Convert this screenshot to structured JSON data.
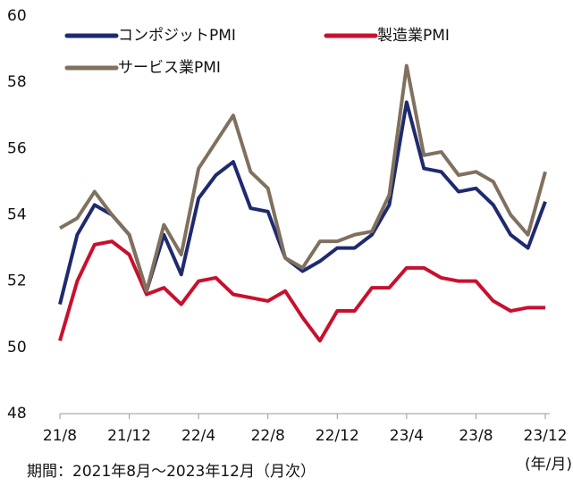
{
  "chart_data": {
    "type": "line",
    "categories": [
      "21/8",
      null,
      null,
      null,
      "21/12",
      null,
      null,
      null,
      "22/4",
      null,
      null,
      null,
      "22/8",
      null,
      null,
      null,
      "22/12",
      null,
      null,
      null,
      "23/4",
      null,
      null,
      null,
      "23/8",
      null,
      null,
      null,
      "23/12"
    ],
    "series": [
      {
        "name": "コンポジットPMI",
        "color": "#1f2a6e",
        "values": [
          51.3,
          53.4,
          54.3,
          54.0,
          53.4,
          51.7,
          53.4,
          52.2,
          54.5,
          55.2,
          55.6,
          54.2,
          54.1,
          52.7,
          52.3,
          52.6,
          53.0,
          53.0,
          53.4,
          54.3,
          57.4,
          55.4,
          55.3,
          54.7,
          54.8,
          54.3,
          53.4,
          53.0,
          54.4
        ]
      },
      {
        "name": "製造業PMI",
        "color": "#c8102e",
        "values": [
          50.2,
          52.0,
          53.1,
          53.2,
          52.8,
          51.6,
          51.8,
          51.3,
          52.0,
          52.1,
          51.6,
          51.5,
          51.4,
          51.7,
          50.9,
          50.2,
          51.1,
          51.1,
          51.8,
          51.8,
          52.4,
          52.4,
          52.1,
          52.0,
          52.0,
          51.4,
          51.1,
          51.2,
          51.2
        ]
      },
      {
        "name": "サービス業PMI",
        "color": "#80705e",
        "values": [
          53.6,
          53.9,
          54.7,
          54.0,
          53.4,
          51.7,
          53.7,
          52.8,
          55.4,
          56.2,
          57.0,
          55.3,
          54.8,
          52.7,
          52.4,
          53.2,
          53.2,
          53.4,
          53.5,
          54.6,
          58.5,
          55.8,
          55.9,
          55.2,
          55.3,
          55.0,
          54.0,
          53.4,
          55.3
        ]
      }
    ],
    "ylim": [
      48,
      60
    ],
    "yticks": [
      48,
      50,
      52,
      54,
      56,
      58,
      60
    ],
    "grid": false,
    "x_unit_label": "(年/月)",
    "note": "期間：2021年8月～2023年12月（月次）"
  }
}
